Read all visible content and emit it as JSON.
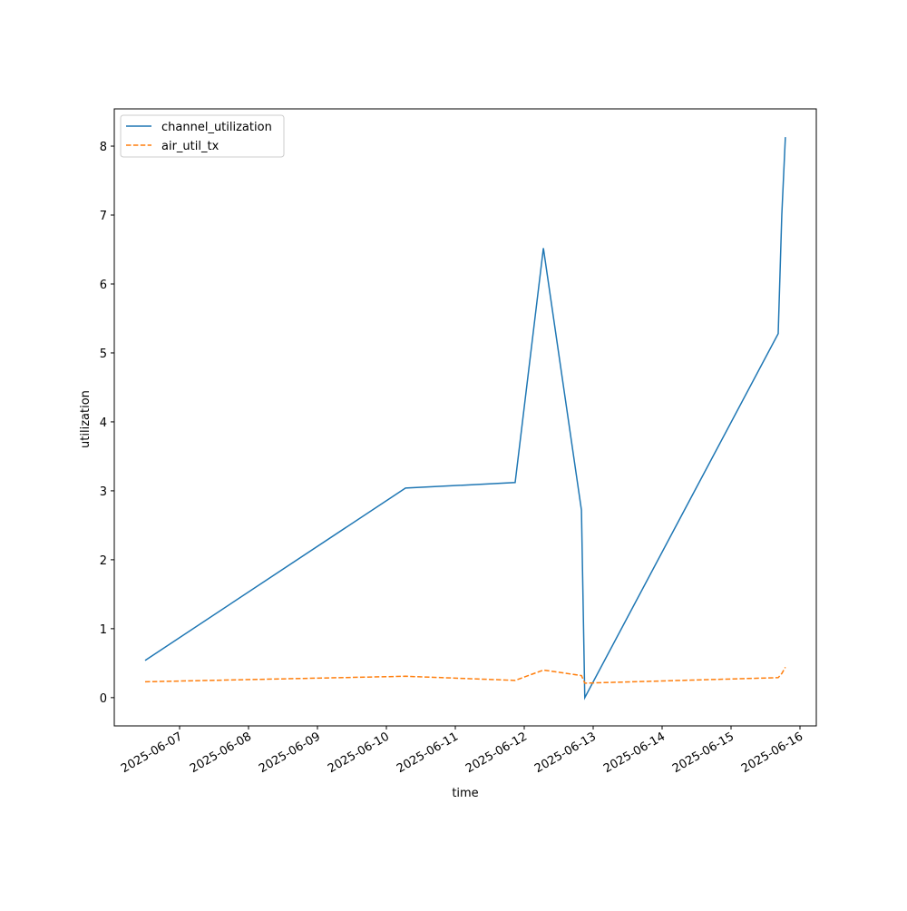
{
  "chart_data": {
    "type": "line",
    "x_label": "time",
    "y_label": "utilization",
    "x": [
      "2025-06-06T12:00",
      "2025-06-10T06:40",
      "2025-06-11T20:50",
      "2025-06-12T06:40",
      "2025-06-12T19:55",
      "2025-06-12T21:05",
      "2025-06-15T16:25",
      "2025-06-15T17:40",
      "2025-06-15T18:55"
    ],
    "series": [
      {
        "name": "channel_utilization",
        "color": "#1f77b4",
        "dash": "solid",
        "values": [
          0.54,
          3.04,
          3.12,
          6.52,
          2.72,
          0.0,
          5.28,
          7.0,
          8.13
        ]
      },
      {
        "name": "air_util_tx",
        "color": "#ff7f0e",
        "dash": "dashed",
        "values": [
          0.23,
          0.31,
          0.25,
          0.4,
          0.32,
          0.21,
          0.29,
          0.35,
          0.44
        ]
      }
    ],
    "xlim": [
      "2025-06-06T01:16",
      "2025-06-16T05:41"
    ],
    "xticks": [
      "2025-06-07",
      "2025-06-08",
      "2025-06-09",
      "2025-06-10",
      "2025-06-11",
      "2025-06-12",
      "2025-06-13",
      "2025-06-14",
      "2025-06-15",
      "2025-06-16"
    ],
    "ylim": [
      -0.41,
      8.54
    ],
    "yticks": [
      0,
      1,
      2,
      3,
      4,
      5,
      6,
      7,
      8
    ],
    "legend": "upper left",
    "grid": false
  }
}
